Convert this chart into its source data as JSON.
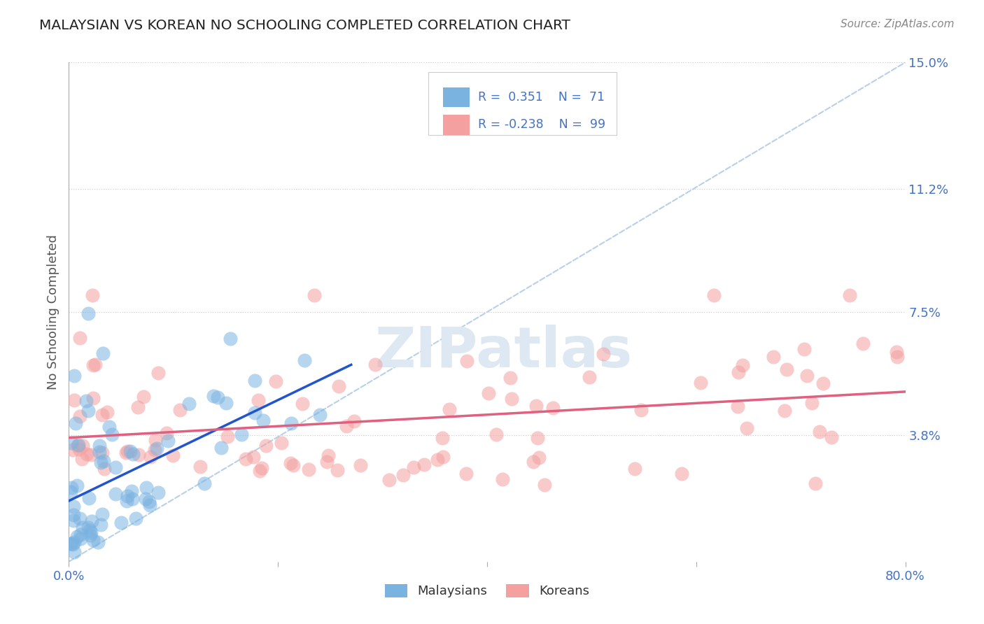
{
  "title": "MALAYSIAN VS KOREAN NO SCHOOLING COMPLETED CORRELATION CHART",
  "source": "Source: ZipAtlas.com",
  "ylabel": "No Schooling Completed",
  "watermark": "ZIPatlas",
  "xlim": [
    0.0,
    0.8
  ],
  "ylim": [
    -0.005,
    0.155
  ],
  "plot_ylim": [
    0.0,
    0.15
  ],
  "xticks": [
    0.0,
    0.2,
    0.4,
    0.6,
    0.8
  ],
  "xtick_labels": [
    "0.0%",
    "",
    "",
    "",
    "80.0%"
  ],
  "ytick_labels_right": [
    "15.0%",
    "11.2%",
    "7.5%",
    "3.8%"
  ],
  "ytick_positions_right": [
    0.15,
    0.112,
    0.075,
    0.038
  ],
  "background_color": "#ffffff",
  "grid_color": "#d0d0d0",
  "legend_color1": "#7ab3e0",
  "legend_color2": "#f4a0a0",
  "scatter_color_malaysian": "#7ab3e0",
  "scatter_color_korean": "#f4a0a0",
  "line_color_malaysian": "#2255cc",
  "line_color_korean": "#e06080",
  "diag_line_color": "#b8d0e8",
  "title_color": "#222222",
  "right_tick_color": "#4472c4",
  "malaysian_seed": 101,
  "korean_seed": 202
}
